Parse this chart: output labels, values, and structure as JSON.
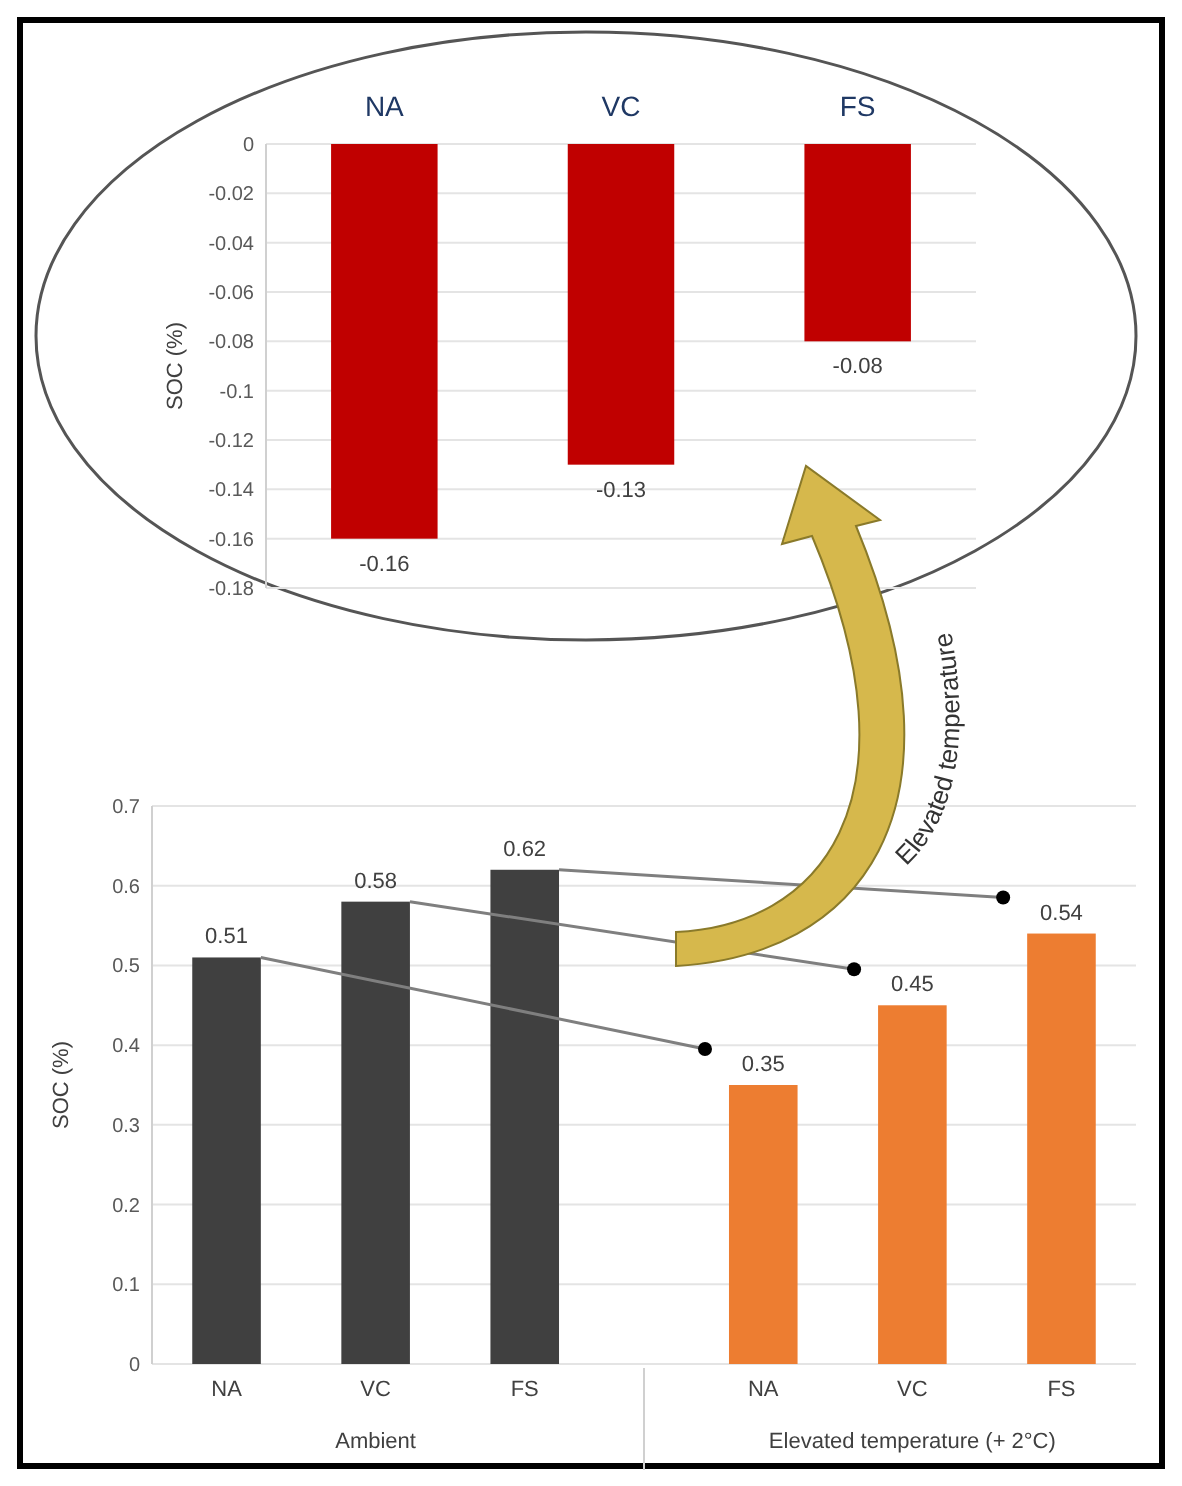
{
  "chart_data": [
    {
      "type": "bar",
      "ylabel": "SOC (%)",
      "categories": [
        "NA",
        "VC",
        "FS"
      ],
      "values": [
        -0.16,
        -0.13,
        -0.08
      ],
      "color": "#c00000",
      "ylim": [
        -0.18,
        0
      ],
      "yticks": [
        {
          "value": -0.18,
          "label": "-0.18"
        },
        {
          "value": -0.16,
          "label": "-0.16"
        },
        {
          "value": -0.14,
          "label": "-0.14"
        },
        {
          "value": -0.12,
          "label": "-0.12"
        },
        {
          "value": -0.1,
          "label": "-0.1"
        },
        {
          "value": -0.08,
          "label": "-0.08"
        },
        {
          "value": -0.06,
          "label": "-0.06"
        },
        {
          "value": -0.04,
          "label": "-0.04"
        },
        {
          "value": -0.02,
          "label": "-0.02"
        },
        0
      ],
      "grid": "y",
      "data_labels": true
    },
    {
      "type": "bar",
      "ylabel": "SOC (%)",
      "categories": [
        "NA",
        "VC",
        "FS",
        "NA",
        "VC",
        "FS"
      ],
      "values": [
        0.51,
        0.58,
        0.62,
        0.35,
        0.45,
        0.54
      ],
      "colors": [
        "#404040",
        "#404040",
        "#404040",
        "#ed7d31",
        "#ed7d31",
        "#ed7d31"
      ],
      "ylim": [
        0,
        0.7
      ],
      "yticks": [
        0,
        0.1,
        0.2,
        0.3,
        0.4,
        0.5,
        0.6,
        0.7
      ],
      "grid": "y",
      "data_labels": true,
      "annotations": [
        "Ambient",
        "Elevated temperature (+ 2°C)",
        "Elevated temperature"
      ]
    }
  ]
}
